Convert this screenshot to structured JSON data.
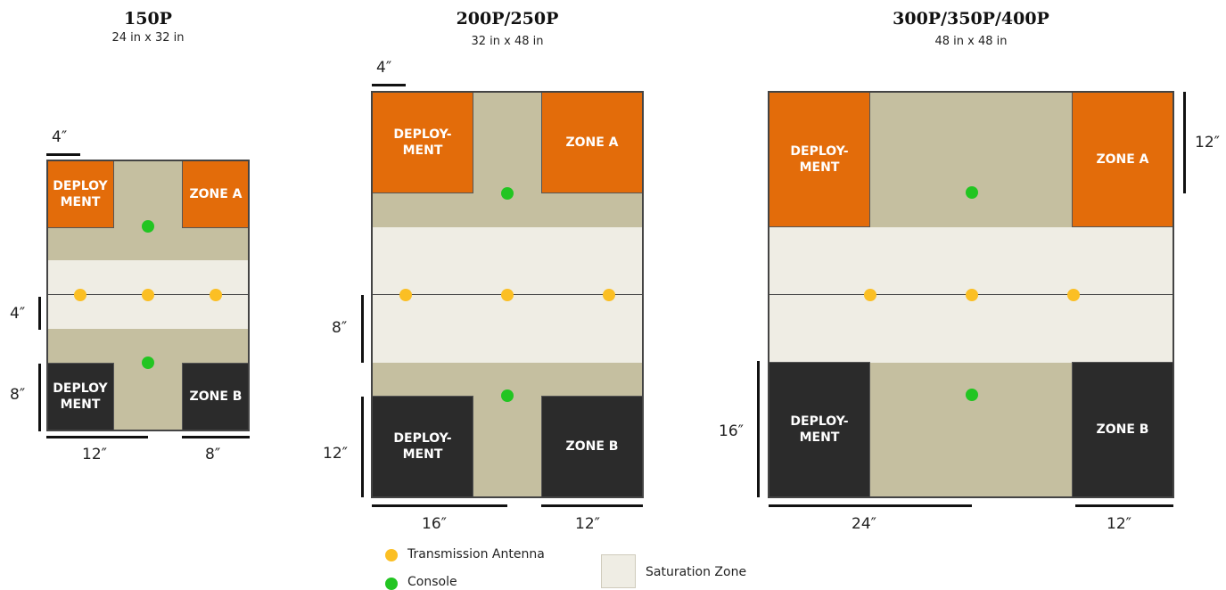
{
  "panels": {
    "p150": {
      "title": "150P",
      "size": "24 in x 32 in",
      "zone_tl": "DEPLOY\nMENT",
      "zone_tr": "ZONE A",
      "zone_bl": "DEPLOY\nMENT",
      "zone_br": "ZONE B",
      "dim_top": "4″",
      "dim_left_a": "4″",
      "dim_left_b": "8″",
      "dim_bottom_a": "12″",
      "dim_bottom_b": "8″"
    },
    "p200": {
      "title": "200P/250P",
      "size": "32 in x 48 in",
      "zone_tl": "DEPLOY-\nMENT",
      "zone_tr": "ZONE A",
      "zone_bl": "DEPLOY-\nMENT",
      "zone_br": "ZONE B",
      "dim_top": "4″",
      "dim_left_a": "8″",
      "dim_left_b": "12″",
      "dim_bottom_a": "16″",
      "dim_bottom_b": "12″"
    },
    "p300": {
      "title": "300P/350P/400P",
      "size": "48 in x 48 in",
      "zone_tl": "DEPLOY-\nMENT",
      "zone_tr": "ZONE A",
      "zone_bl": "DEPLOY-\nMENT",
      "zone_br": "ZONE B",
      "dim_right": "12″",
      "dim_left": "16″",
      "dim_bottom_a": "24″",
      "dim_bottom_b": "12″"
    }
  },
  "legend": {
    "antenna": "Transmission Antenna",
    "console": "Console",
    "saturation": "Saturation Zone"
  },
  "colors": {
    "deployment_top": "#e36c0a",
    "deployment_bottom": "#2b2b2b",
    "background_zone": "#c5bfa0",
    "saturation_zone": "#efede4",
    "antenna": "#fbbf24",
    "console": "#22c522"
  }
}
